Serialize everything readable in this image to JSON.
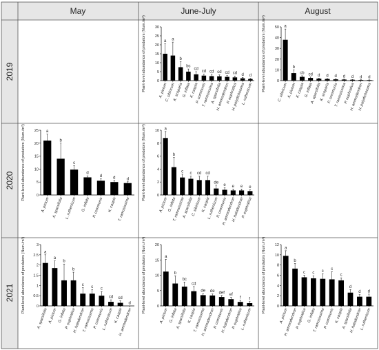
{
  "header": {
    "columns": [
      "May",
      "June-July",
      "August"
    ],
    "rows": [
      "2019",
      "2020",
      "2021"
    ]
  },
  "y_axis_label": "Plant-level abundance of predators (Num./m²)",
  "chart_data": [
    {
      "type": "bar",
      "id": "2019-june-july",
      "row": 0,
      "col": 1,
      "ylim": [
        0,
        30
      ],
      "yticks": [
        0,
        5,
        10,
        15,
        20,
        25,
        30
      ],
      "categories": [
        "A. pictum",
        "C. sibiricum",
        "K. scoparia",
        "G. inflata",
        "K. caspia",
        "P. communis",
        "T. ramosissima",
        "A. sparsifolia",
        "H. ammodendron",
        "P. euphratica",
        "H. polydichotoma",
        "L. ruthenicum"
      ],
      "values": [
        15.0,
        14.0,
        7.5,
        5.0,
        3.5,
        2.8,
        2.5,
        2.4,
        2.1,
        1.8,
        1.3,
        0.9
      ],
      "errors": [
        5.5,
        7.5,
        3.0,
        1.5,
        1.5,
        0.8,
        1.0,
        0.8,
        0.7,
        0.8,
        0.5,
        0.4
      ],
      "letters": [
        "a",
        "a",
        "b",
        "bc",
        "cd",
        "cd",
        "cd",
        "cd",
        "cd",
        "cd",
        "d",
        "d"
      ],
      "ylabel": "Plant-level abundance of predators (Num./m²)"
    },
    {
      "type": "bar",
      "id": "2019-august",
      "row": 0,
      "col": 2,
      "ylim": [
        0,
        50
      ],
      "yticks": [
        0,
        10,
        20,
        30,
        40,
        50
      ],
      "categories": [
        "C. sibiricum",
        "A. pictum",
        "K. caspia",
        "G. inflata",
        "A. sparsifolia",
        "K. scoparia",
        "P. communis",
        "T. ramosissima",
        "P. euphratica",
        "H. ammodendron",
        "H. polydichotoma"
      ],
      "values": [
        38.0,
        7.0,
        3.5,
        2.5,
        1.8,
        1.5,
        1.2,
        1.0,
        0.8,
        0.6,
        0.5
      ],
      "errors": [
        10.0,
        3.0,
        1.0,
        0.8,
        0.6,
        0.5,
        0.4,
        0.3,
        0.3,
        0.2,
        0.2
      ],
      "letters": [
        "a",
        "b",
        "cb",
        "cd",
        "d",
        "d",
        "d",
        "d",
        "d",
        "d",
        "d"
      ],
      "ylabel": "Plant-level abundance of predators (Num./m²)"
    },
    {
      "type": "bar",
      "id": "2020-may",
      "row": 1,
      "col": 0,
      "ylim": [
        0,
        25
      ],
      "yticks": [
        0,
        5,
        10,
        15,
        20,
        25
      ],
      "categories": [
        "A. pictum",
        "A. sparsifolia",
        "L. ruthenicum",
        "G. inflata",
        "P. communis",
        "K. caspia",
        "T. ramosissima"
      ],
      "values": [
        21.0,
        14.0,
        9.8,
        6.8,
        5.5,
        5.0,
        4.6
      ],
      "errors": [
        2.5,
        6.0,
        1.5,
        0.6,
        0.8,
        0.6,
        0.5
      ],
      "letters": [
        "a",
        "b",
        "c",
        "d",
        "d",
        "d",
        "d"
      ],
      "ylabel": "Plant-level abundance of predators (Num./m²)"
    },
    {
      "type": "bar",
      "id": "2020-june-july",
      "row": 1,
      "col": 1,
      "ylim": [
        0,
        10
      ],
      "yticks": [
        0,
        2,
        4,
        6,
        8,
        10
      ],
      "categories": [
        "A. pictum",
        "G. inflata",
        "T. ramosissima",
        "A. sparsifolia",
        "C. sibiricum",
        "K. caspia",
        "L. ruthenicum",
        "P. communis",
        "H. ammodendron",
        "H. halodendron",
        "P. euphratica"
      ],
      "values": [
        8.8,
        4.3,
        2.7,
        2.5,
        2.3,
        2.3,
        1.0,
        0.8,
        0.7,
        0.7,
        0.6
      ],
      "errors": [
        1.0,
        1.5,
        0.5,
        0.4,
        0.6,
        0.6,
        0.5,
        0.3,
        0.2,
        0.2,
        0.2
      ],
      "letters": [
        "a",
        "b",
        "c",
        "c",
        "cd",
        "cd",
        "de",
        "e",
        "e",
        "e",
        "e"
      ],
      "ylabel": "Plant-level abundance of predators (Num./m²)"
    },
    {
      "type": "bar",
      "id": "2021-may",
      "row": 2,
      "col": 0,
      "ylim": [
        0,
        3.0
      ],
      "yticks": [
        0,
        0.5,
        1.0,
        1.5,
        2.0,
        2.5,
        3.0
      ],
      "categories": [
        "A. sparsifolia",
        "A. pictum",
        "G. inflata",
        "P. euphratica",
        "H. halodendron",
        "T. ramosissima",
        "P. communis",
        "L. ruthenicum",
        "K. caspia",
        "H. ammodendron"
      ],
      "values": [
        2.1,
        1.85,
        1.25,
        1.25,
        0.6,
        0.6,
        0.5,
        0.2,
        0.15,
        0.0
      ],
      "errors": [
        0.4,
        0.35,
        0.8,
        0.4,
        0.3,
        0.2,
        0.2,
        0.1,
        0.1,
        0.0
      ],
      "letters": [
        "a",
        "a",
        "b",
        "b",
        "c",
        "c",
        "c",
        "cd",
        "cd",
        "d"
      ],
      "ylabel": "Plant-level abundance of predators (Num./m²)"
    },
    {
      "type": "bar",
      "id": "2021-june-july",
      "row": 2,
      "col": 1,
      "ylim": [
        0,
        20
      ],
      "yticks": [
        0,
        5,
        10,
        15,
        20
      ],
      "categories": [
        "A. pictum",
        "G. inflata",
        "A. sparsifolia",
        "K. caspia",
        "T. ramosissima",
        "H. ammodendron",
        "P. communis",
        "H. halodendron",
        "P. euphratica",
        "L. ruthenicum"
      ],
      "values": [
        11.2,
        7.3,
        6.3,
        4.8,
        3.5,
        3.4,
        2.9,
        2.2,
        1.3,
        0.9
      ],
      "errors": [
        4.0,
        2.5,
        1.5,
        1.5,
        0.5,
        0.5,
        0.5,
        0.6,
        0.5,
        0.5
      ],
      "letters": [
        "a",
        "b",
        "bc",
        "cd",
        "de",
        "de",
        "def",
        "ef",
        "f",
        "f"
      ],
      "ylabel": "Plant-level abundance of predators (Num./m²)"
    },
    {
      "type": "bar",
      "id": "2021-august",
      "row": 2,
      "col": 2,
      "ylim": [
        0,
        12
      ],
      "yticks": [
        0,
        2,
        4,
        6,
        8,
        10,
        12
      ],
      "categories": [
        "A. pictum",
        "H. ammodendron",
        "P. euphratica",
        "G. inflata",
        "T. ramosissima",
        "P. communis",
        "K. caspia",
        "A. sparsifolia",
        "H. halodendron",
        "L. ruthenicum"
      ],
      "values": [
        9.8,
        7.3,
        5.6,
        5.4,
        5.3,
        5.2,
        5.0,
        2.6,
        1.8,
        1.8
      ],
      "errors": [
        1.0,
        1.0,
        0.4,
        0.5,
        1.0,
        1.5,
        0.5,
        0.6,
        0.4,
        0.5
      ],
      "letters": [
        "a",
        "b",
        "c",
        "c",
        "c",
        "c",
        "c",
        "d",
        "d",
        "d"
      ],
      "ylabel": "Plant-level abundance of predators (Num./m²)"
    }
  ]
}
